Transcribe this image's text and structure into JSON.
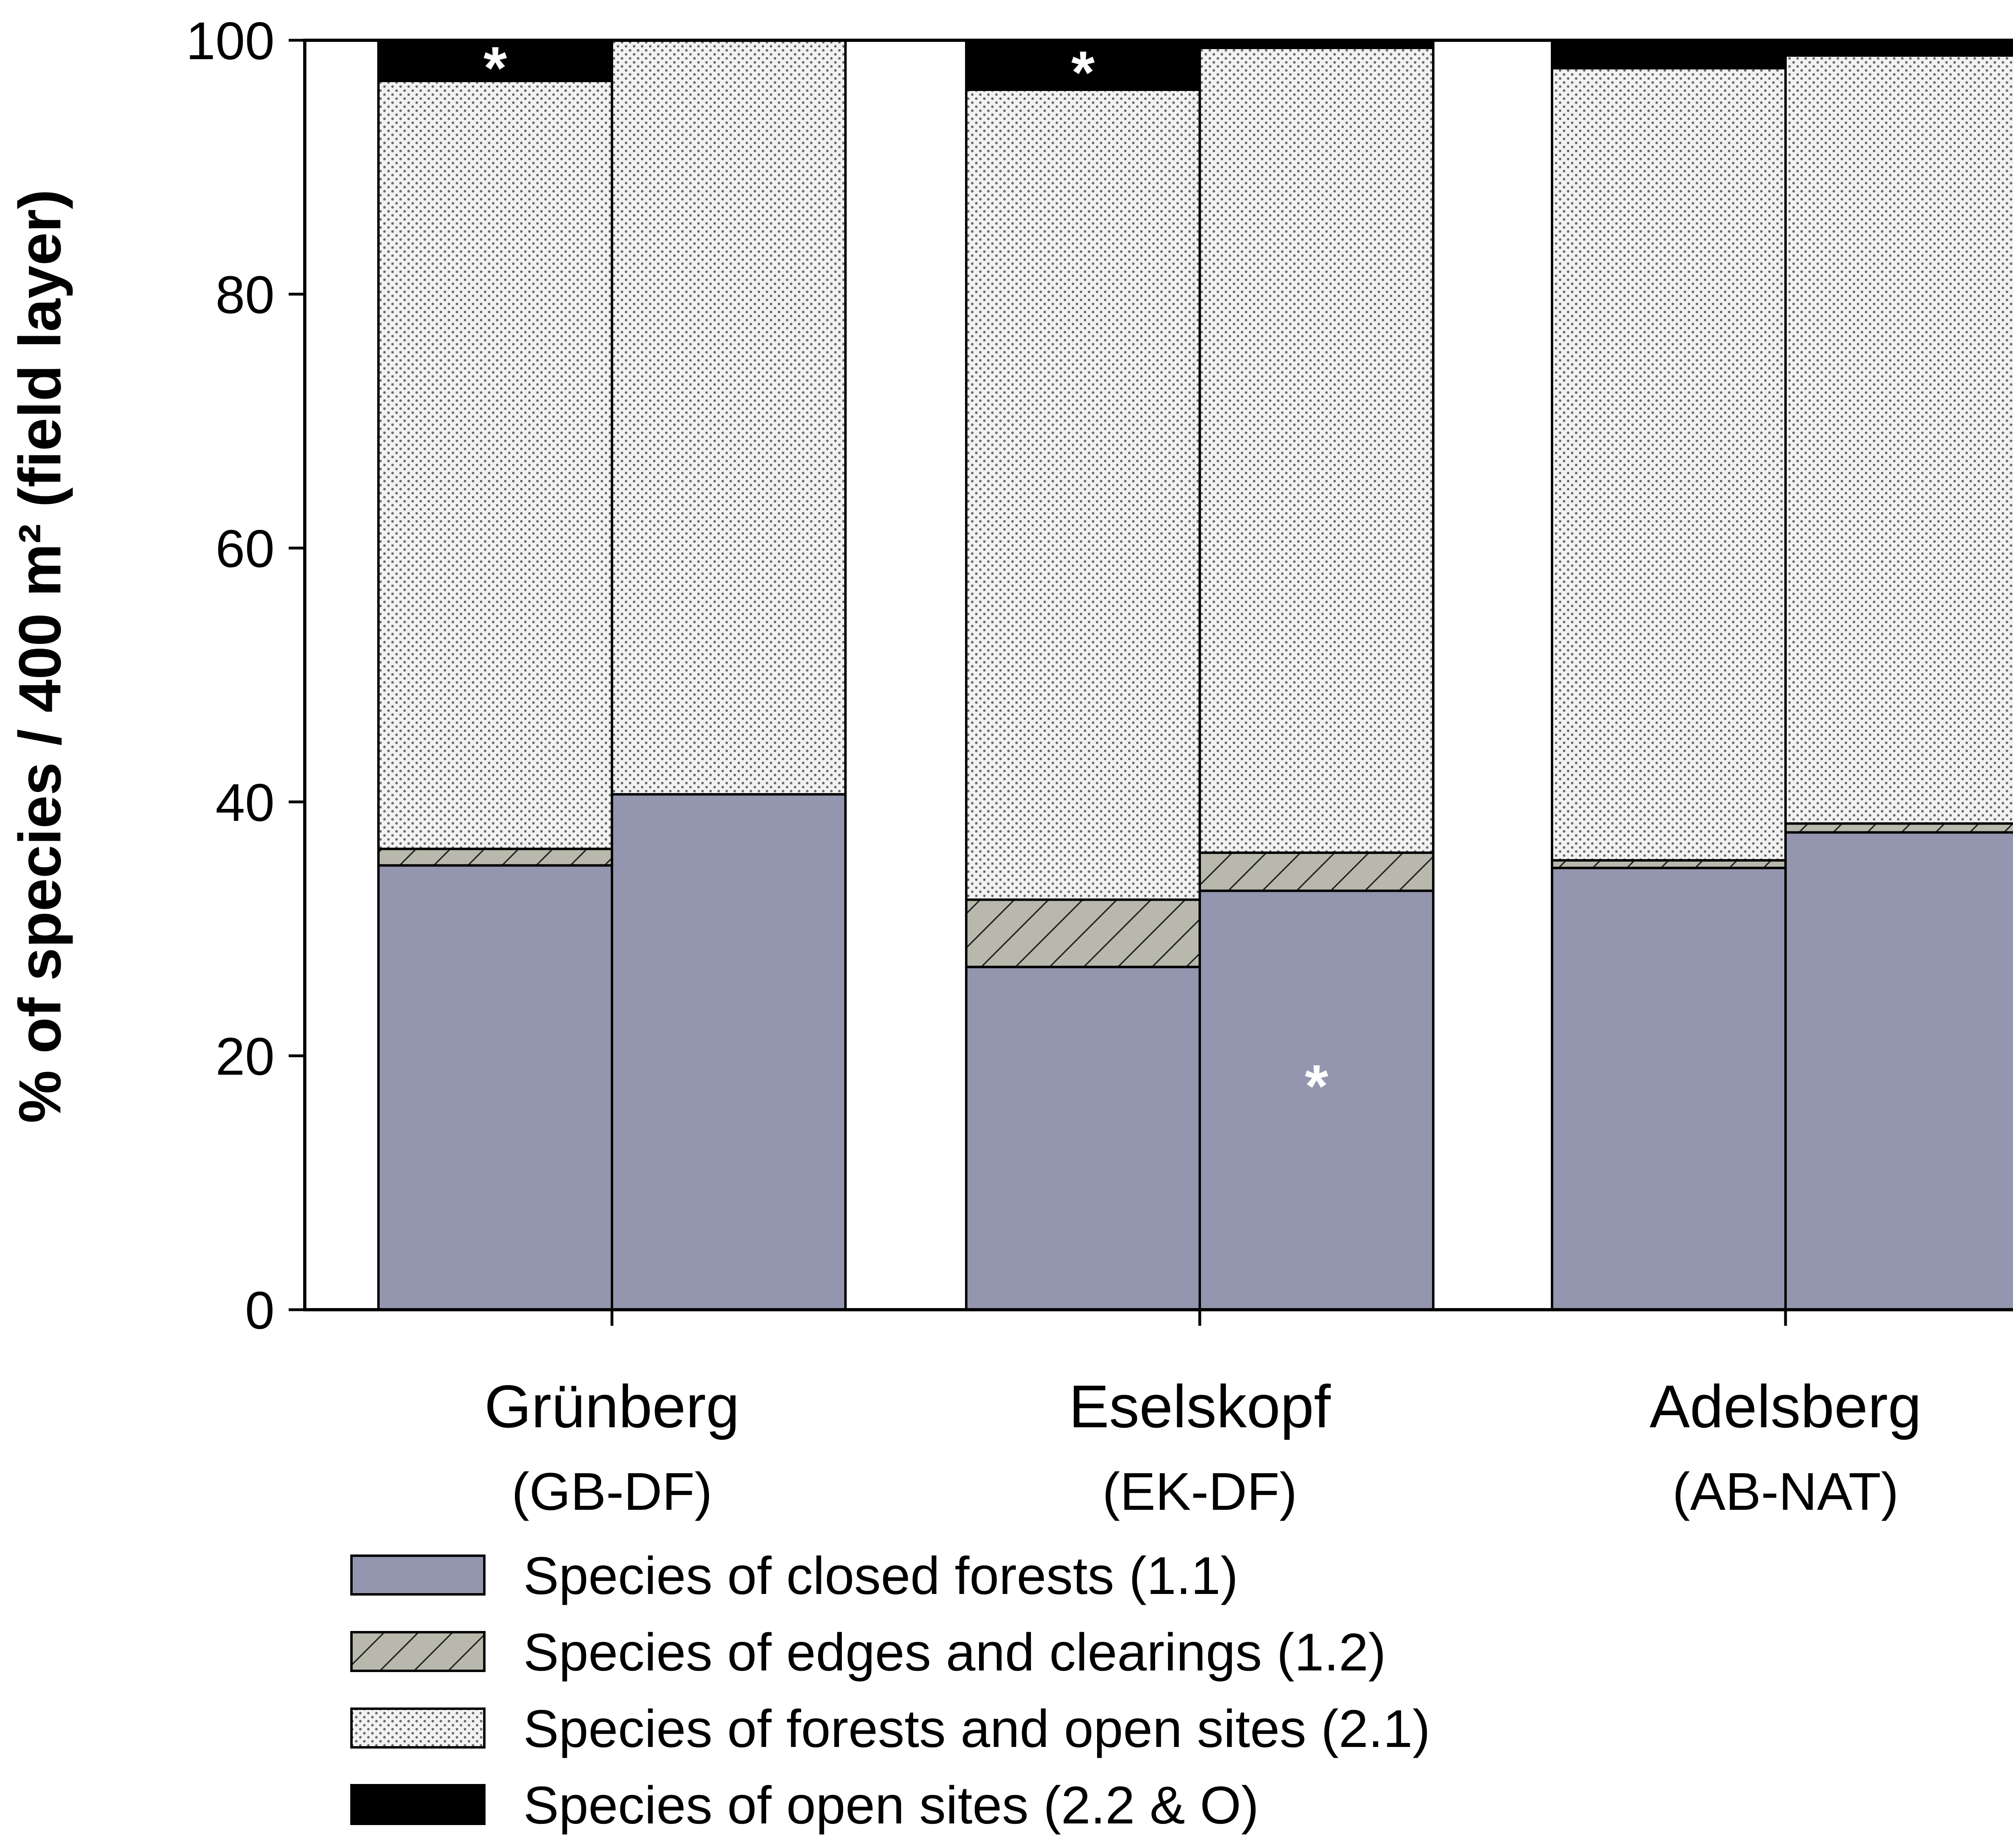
{
  "chart_data": {
    "type": "bar",
    "stacked": true,
    "title": "",
    "ylabel": "% of species / 400 m² (field layer)",
    "xlabel": "",
    "ylim": [
      0,
      100
    ],
    "yticks": [
      "0",
      "20",
      "40",
      "60",
      "80",
      "100"
    ],
    "grid": false,
    "legend_position": "bottom",
    "groups": [
      {
        "name": "Grünberg",
        "code": "(GB-DF)"
      },
      {
        "name": "Eselskopf",
        "code": "(EK-DF)"
      },
      {
        "name": "Adelsberg",
        "code": "(AB-NAT)"
      }
    ],
    "bars": [
      {
        "group": 0,
        "values": [
          35.0,
          1.3,
          60.5,
          3.2
        ],
        "star_on_series": 3
      },
      {
        "group": 0,
        "values": [
          40.6,
          0.0,
          59.4,
          0.0
        ]
      },
      {
        "group": 1,
        "values": [
          27.0,
          5.3,
          63.8,
          3.9
        ],
        "star_on_series": 3
      },
      {
        "group": 1,
        "values": [
          33.0,
          3.0,
          63.4,
          0.6
        ],
        "star_on_series": 0
      },
      {
        "group": 2,
        "values": [
          34.8,
          0.6,
          62.4,
          2.2
        ]
      },
      {
        "group": 2,
        "values": [
          37.6,
          0.7,
          60.5,
          1.2
        ]
      }
    ],
    "series": [
      {
        "name": "Species of closed forests (1.1)",
        "key": "closed",
        "color": "#9495ae"
      },
      {
        "name": "Species of edges and clearings (1.2)",
        "key": "edges",
        "color": "#b8b8ac"
      },
      {
        "name": "Species of forests and open sites (2.1)",
        "key": "forest_open",
        "color": "#e2e2e2"
      },
      {
        "name": "Species of open sites (2.2 & O)",
        "key": "open",
        "color": "#000000"
      }
    ],
    "annotation_symbol": "*"
  }
}
